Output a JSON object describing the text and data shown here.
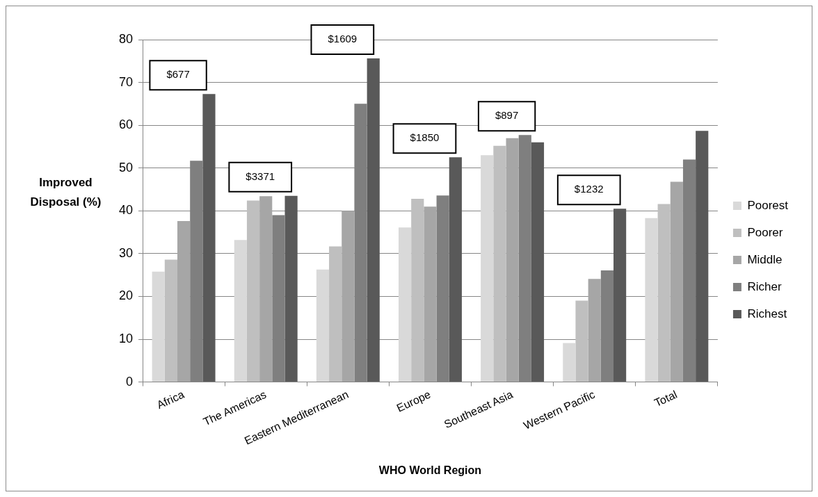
{
  "chart_data": {
    "type": "bar",
    "xlabel": "WHO World Region",
    "ylabel": "Improved Disposal (%)",
    "categories": [
      "Africa",
      "The Americas",
      "Eastern Mediterranean",
      "Europe",
      "Southeast Asia",
      "Western Pacific",
      "Total"
    ],
    "series": [
      {
        "name": "Poorest",
        "color": "#d9d9d9",
        "values": [
          25.8,
          33.2,
          26.3,
          36.1,
          53,
          9.1,
          38.3
        ]
      },
      {
        "name": "Poorer",
        "color": "#bfbfbf",
        "values": [
          28.6,
          42.4,
          31.7,
          42.8,
          55.2,
          19,
          41.6
        ]
      },
      {
        "name": "Middle",
        "color": "#a6a6a6",
        "values": [
          37.6,
          43.4,
          40,
          41,
          57,
          24.1,
          46.8
        ]
      },
      {
        "name": "Richer",
        "color": "#7f7f7f",
        "values": [
          51.7,
          39,
          65,
          43.6,
          57.7,
          26.1,
          52
        ]
      },
      {
        "name": "Richest",
        "color": "#595959",
        "values": [
          67.3,
          43.5,
          75.6,
          52.5,
          56,
          40.5,
          58.7
        ]
      }
    ],
    "ylim": [
      0,
      80
    ],
    "yticks": [
      0,
      10,
      20,
      30,
      40,
      50,
      60,
      70,
      80
    ],
    "grid": "y",
    "legend": "right",
    "annotations": [
      "$677",
      "$3371",
      "$1609",
      "$1850",
      "$897",
      "$1232"
    ]
  }
}
